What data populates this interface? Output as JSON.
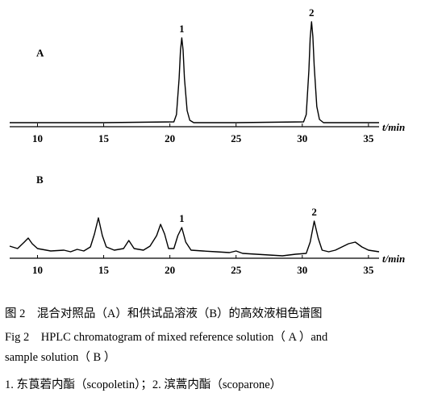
{
  "chart_data": [
    {
      "type": "line",
      "panel_label": "A",
      "xlabel": "t/min",
      "x": [
        7.9,
        15,
        20.3,
        20.5,
        20.7,
        20.8,
        20.9,
        21.0,
        21.1,
        21.3,
        21.5,
        21.8,
        25,
        30.1,
        30.3,
        30.5,
        30.6,
        30.7,
        30.8,
        30.9,
        31.1,
        31.3,
        31.6,
        35.8
      ],
      "values": [
        5,
        5,
        6,
        15,
        60,
        95,
        110,
        95,
        60,
        20,
        8,
        5,
        5,
        6,
        15,
        70,
        110,
        130,
        112,
        75,
        25,
        9,
        5,
        5
      ],
      "xlim": [
        7.9,
        35.8
      ],
      "xticks": [
        10,
        15,
        20,
        25,
        30,
        35
      ],
      "ylim": [
        0,
        135
      ],
      "color": "#000000",
      "peak_labels": [
        {
          "label": "1",
          "x": 20.9
        },
        {
          "label": "2",
          "x": 30.7
        }
      ]
    },
    {
      "type": "line",
      "panel_label": "B",
      "xlabel": "t/min",
      "x": [
        7.9,
        8.5,
        9.0,
        9.3,
        9.6,
        10.0,
        11,
        12,
        12.5,
        13,
        13.5,
        14.0,
        14.3,
        14.6,
        14.9,
        15.2,
        15.8,
        16.5,
        16.9,
        17.3,
        18,
        18.5,
        19.0,
        19.3,
        19.6,
        19.9,
        20.3,
        20.6,
        20.9,
        21.2,
        21.6,
        22.5,
        23.5,
        24.5,
        25,
        25.5,
        26.5,
        27.5,
        28.5,
        29.5,
        30.3,
        30.6,
        30.9,
        31.2,
        31.5,
        32,
        32.5,
        33,
        33.5,
        34,
        34.5,
        35,
        35.8
      ],
      "values": [
        15,
        12,
        20,
        25,
        18,
        12,
        9,
        10,
        8,
        11,
        9,
        14,
        30,
        50,
        28,
        14,
        10,
        12,
        22,
        12,
        10,
        15,
        28,
        42,
        30,
        12,
        12,
        28,
        38,
        20,
        10,
        9,
        8,
        7,
        9,
        6,
        5,
        4,
        3,
        5,
        6,
        20,
        46,
        25,
        10,
        8,
        10,
        14,
        18,
        20,
        14,
        10,
        8
      ],
      "xlim": [
        7.9,
        35.8
      ],
      "xticks": [
        10,
        15,
        20,
        25,
        30,
        35
      ],
      "ylim": [
        0,
        60
      ],
      "color": "#000000",
      "peak_labels": [
        {
          "label": "1",
          "x": 20.9
        },
        {
          "label": "2",
          "x": 30.9
        }
      ]
    }
  ],
  "caption": [
    "图 2　混合对照品（A）和供试品溶液（B）的高效液相色谱图",
    "Fig 2　HPLC chromatogram of mixed reference solution（ A ）and",
    "sample solution（ B ）",
    "1. 东莨菪内酯（scopoletin）；2. 滨蒿内酯（scoparone）"
  ]
}
